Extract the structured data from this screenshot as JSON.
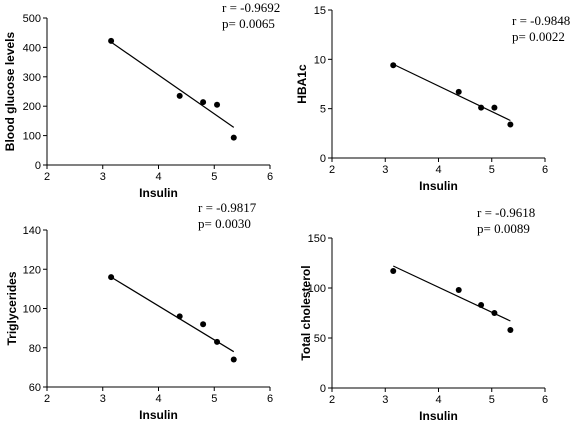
{
  "chart_data": [
    {
      "type": "scatter",
      "xlabel": "Insulin",
      "ylabel": "Blood glucose levels",
      "xlim": [
        2,
        6
      ],
      "ylim": [
        0,
        500
      ],
      "xticks": [
        "2",
        "3",
        "4",
        "5",
        "6"
      ],
      "yticks": [
        "0",
        "100",
        "200",
        "300",
        "400",
        "500"
      ],
      "points": [
        {
          "x": 3.15,
          "y": 422
        },
        {
          "x": 4.38,
          "y": 235
        },
        {
          "x": 4.8,
          "y": 214
        },
        {
          "x": 5.05,
          "y": 205
        },
        {
          "x": 5.35,
          "y": 93
        }
      ],
      "fit_line": {
        "x1": 3.15,
        "y1": 418,
        "x2": 5.35,
        "y2": 128
      },
      "annotation": {
        "r": "r = -0.9692",
        "p": "p=  0.0065"
      }
    },
    {
      "type": "scatter",
      "xlabel": "Insulin",
      "ylabel": "HBA1c",
      "xlim": [
        2,
        6
      ],
      "ylim": [
        0,
        15
      ],
      "xticks": [
        "2",
        "3",
        "4",
        "5",
        "6"
      ],
      "yticks": [
        "0",
        "5",
        "10",
        "15"
      ],
      "points": [
        {
          "x": 3.15,
          "y": 9.4
        },
        {
          "x": 4.38,
          "y": 6.7
        },
        {
          "x": 4.8,
          "y": 5.1
        },
        {
          "x": 5.05,
          "y": 5.1
        },
        {
          "x": 5.35,
          "y": 3.4
        }
      ],
      "fit_line": {
        "x1": 3.15,
        "y1": 9.5,
        "x2": 5.35,
        "y2": 3.8
      },
      "annotation": {
        "r": "r = -0.9848",
        "p": "p= 0.0022"
      }
    },
    {
      "type": "scatter",
      "xlabel": "Insulin",
      "ylabel": "Triglycerides",
      "xlim": [
        2,
        6
      ],
      "ylim": [
        60,
        140
      ],
      "xticks": [
        "2",
        "3",
        "4",
        "5",
        "6"
      ],
      "yticks": [
        "60",
        "80",
        "100",
        "120",
        "140"
      ],
      "points": [
        {
          "x": 3.15,
          "y": 116
        },
        {
          "x": 4.38,
          "y": 96
        },
        {
          "x": 4.8,
          "y": 92
        },
        {
          "x": 5.05,
          "y": 83
        },
        {
          "x": 5.35,
          "y": 74
        }
      ],
      "fit_line": {
        "x1": 3.15,
        "y1": 116,
        "x2": 5.35,
        "y2": 78
      },
      "annotation": {
        "r": "r = -0.9817",
        "p": "p= 0.0030"
      }
    },
    {
      "type": "scatter",
      "xlabel": "Insulin",
      "ylabel": "Total cholesterol",
      "xlim": [
        2,
        6
      ],
      "ylim": [
        0,
        150
      ],
      "xticks": [
        "2",
        "3",
        "4",
        "5",
        "6"
      ],
      "yticks": [
        "0",
        "50",
        "100",
        "150"
      ],
      "points": [
        {
          "x": 3.15,
          "y": 117
        },
        {
          "x": 4.38,
          "y": 98
        },
        {
          "x": 4.8,
          "y": 83
        },
        {
          "x": 5.05,
          "y": 75
        },
        {
          "x": 5.35,
          "y": 58
        }
      ],
      "fit_line": {
        "x1": 3.15,
        "y1": 122,
        "x2": 5.35,
        "y2": 67
      },
      "annotation": {
        "r": "r = -0.9618",
        "p": "p= 0.0089"
      }
    }
  ]
}
